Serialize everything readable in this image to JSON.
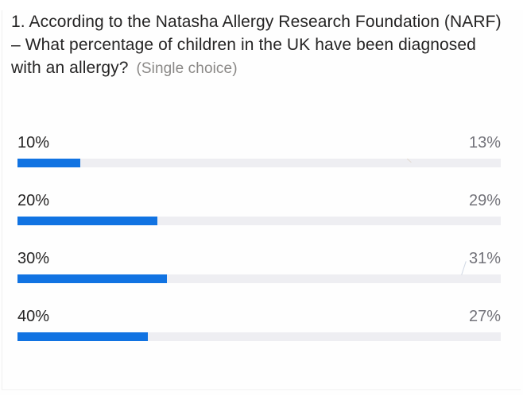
{
  "question": {
    "text": "1. According to the Natasha Allergy Research Foundation (NARF) – What percentage of children in the UK have been diagnosed with an allergy?",
    "type_hint": "(Single choice)"
  },
  "options": [
    {
      "label": "10%",
      "result_label": "13%",
      "result_percent": 13
    },
    {
      "label": "20%",
      "result_label": "29%",
      "result_percent": 29
    },
    {
      "label": "30%",
      "result_label": "31%",
      "result_percent": 31
    },
    {
      "label": "40%",
      "result_label": "27%",
      "result_percent": 27
    }
  ],
  "chart_data": {
    "type": "bar",
    "orientation": "horizontal",
    "title": "1. According to the Natasha Allergy Research Foundation (NARF) – What percentage of children in the UK have been diagnosed with an allergy?",
    "subtitle": "(Single choice)",
    "categories": [
      "10%",
      "20%",
      "30%",
      "40%"
    ],
    "values": [
      13,
      29,
      31,
      27
    ],
    "value_labels": [
      "13%",
      "29%",
      "31%",
      "27%"
    ],
    "xlim": [
      0,
      100
    ],
    "grid": false,
    "legend": false,
    "bar_color": "#1173e2",
    "track_color": "#eeeef2"
  },
  "colors": {
    "bar_fill": "#1173e2",
    "bar_track": "#eeeef2",
    "question_text": "#252424",
    "hint_text": "#8a8886",
    "result_text": "#73737a",
    "background": "#fefefe"
  }
}
